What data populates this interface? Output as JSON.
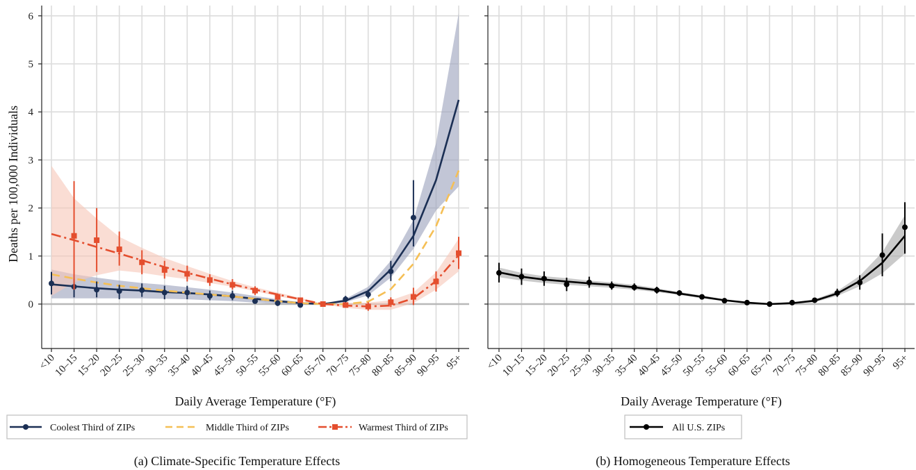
{
  "chart_data": [
    {
      "type": "line",
      "caption": "(a) Climate-Specific Temperature Effects",
      "ylabel": "Deaths per 100,000 Individuals",
      "xlabel": "Daily Average Temperature (°F)",
      "categories": [
        "<10",
        "10–15",
        "15–20",
        "20–25",
        "25–30",
        "30–35",
        "35–40",
        "40–45",
        "45–50",
        "50–55",
        "55–60",
        "60–65",
        "65–70",
        "70–75",
        "75–80",
        "80–85",
        "85–90",
        "90–95",
        "95+"
      ],
      "y_ticks": [
        "0",
        "1",
        "2",
        "3",
        "4",
        "5",
        "6"
      ],
      "ylim": [
        -0.95,
        6.2
      ],
      "grid": true,
      "legend_position": "bottom",
      "series": [
        {
          "name": "Coolest Third of ZIPs",
          "color": "#1b2f54",
          "line_style": "solid",
          "marker": "circle",
          "band_color": "#9aa0ba",
          "fit": [
            0.41,
            0.37,
            0.33,
            0.3,
            0.28,
            0.25,
            0.23,
            0.2,
            0.16,
            0.11,
            0.06,
            0.02,
            0.0,
            0.07,
            0.27,
            0.72,
            1.42,
            2.58,
            4.25
          ],
          "band_lower": [
            0.12,
            0.12,
            0.12,
            0.12,
            0.12,
            0.11,
            0.1,
            0.08,
            0.06,
            0.03,
            0.01,
            0.0,
            0.0,
            0.04,
            0.18,
            0.55,
            1.15,
            1.95,
            2.45
          ],
          "band_upper": [
            0.72,
            0.62,
            0.55,
            0.49,
            0.44,
            0.4,
            0.35,
            0.3,
            0.24,
            0.17,
            0.1,
            0.04,
            0.0,
            0.11,
            0.36,
            0.9,
            1.75,
            3.35,
            6.05
          ],
          "points": [
            0.43,
            0.36,
            0.3,
            0.27,
            0.29,
            0.24,
            0.24,
            0.17,
            0.17,
            0.06,
            0.02,
            -0.02,
            0.0,
            0.1,
            0.2,
            0.68,
            1.8,
            null,
            null
          ],
          "err_lower": [
            0.2,
            0.14,
            0.14,
            0.1,
            0.15,
            0.1,
            0.1,
            0.08,
            0.08,
            0.02,
            -0.04,
            -0.06,
            0.0,
            0.03,
            0.12,
            0.48,
            1.2,
            null,
            null
          ],
          "err_upper": [
            0.67,
            0.53,
            0.47,
            0.4,
            0.43,
            0.38,
            0.38,
            0.28,
            0.28,
            0.12,
            0.08,
            0.02,
            0.0,
            0.17,
            0.3,
            0.9,
            2.58,
            null,
            null
          ]
        },
        {
          "name": "Middle Third of ZIPs",
          "color": "#f5bf55",
          "line_style": "dashed",
          "marker": "none",
          "fit": [
            0.62,
            0.53,
            0.45,
            0.38,
            0.33,
            0.28,
            0.24,
            0.2,
            0.16,
            0.11,
            0.06,
            0.02,
            0.0,
            0.0,
            0.05,
            0.31,
            0.84,
            1.62,
            2.78
          ]
        },
        {
          "name": "Warmest Third of ZIPs",
          "color": "#e44e2e",
          "line_style": "dashdot",
          "marker": "square",
          "band_color": "#f7c6b8",
          "fit": [
            1.46,
            1.33,
            1.19,
            1.05,
            0.91,
            0.77,
            0.65,
            0.53,
            0.41,
            0.3,
            0.2,
            0.1,
            0.0,
            -0.03,
            -0.05,
            -0.03,
            0.12,
            0.48,
            1.02
          ],
          "band_lower": [
            0.17,
            0.45,
            0.6,
            0.7,
            0.65,
            0.58,
            0.52,
            0.44,
            0.36,
            0.27,
            0.16,
            0.08,
            0.0,
            -0.08,
            -0.12,
            -0.12,
            0.02,
            0.3,
            0.68
          ],
          "band_upper": [
            2.88,
            2.2,
            1.78,
            1.4,
            1.17,
            0.96,
            0.79,
            0.63,
            0.48,
            0.35,
            0.24,
            0.13,
            0.0,
            0.02,
            0.03,
            0.08,
            0.24,
            0.66,
            1.36
          ],
          "points": [
            null,
            1.42,
            1.33,
            1.14,
            0.87,
            0.71,
            0.63,
            0.5,
            0.4,
            0.28,
            0.15,
            0.08,
            0.0,
            -0.02,
            -0.05,
            0.04,
            0.15,
            0.47,
            1.06
          ],
          "err_lower": [
            null,
            0.3,
            0.67,
            0.8,
            0.62,
            0.53,
            0.47,
            0.38,
            0.3,
            0.19,
            0.08,
            0.03,
            0.0,
            -0.07,
            -0.14,
            -0.06,
            -0.02,
            0.26,
            0.73
          ],
          "err_upper": [
            null,
            2.56,
            2.0,
            1.51,
            1.12,
            0.9,
            0.8,
            0.62,
            0.52,
            0.37,
            0.22,
            0.13,
            0.0,
            0.03,
            0.04,
            0.14,
            0.34,
            0.68,
            1.4
          ]
        }
      ]
    },
    {
      "type": "line",
      "caption": "(b) Homogeneous Temperature Effects",
      "xlabel": "Daily Average Temperature (°F)",
      "categories": [
        "<10",
        "10–15",
        "15–20",
        "20–25",
        "25–30",
        "30–35",
        "35–40",
        "40–45",
        "45–50",
        "50–55",
        "55–60",
        "60–65",
        "65–70",
        "70–75",
        "75–80",
        "80–85",
        "85–90",
        "90–95",
        "95+"
      ],
      "ylim": [
        -0.95,
        6.2
      ],
      "grid": true,
      "legend_position": "bottom",
      "series": [
        {
          "name": "All U.S. ZIPs",
          "color": "#000000",
          "line_style": "solid",
          "marker": "circle",
          "band_color": "#a6a6a6",
          "fit": [
            0.66,
            0.57,
            0.51,
            0.47,
            0.43,
            0.4,
            0.35,
            0.29,
            0.22,
            0.15,
            0.08,
            0.03,
            0.0,
            0.02,
            0.07,
            0.22,
            0.48,
            0.86,
            1.42
          ],
          "band_lower": [
            0.56,
            0.49,
            0.44,
            0.4,
            0.37,
            0.34,
            0.3,
            0.25,
            0.19,
            0.12,
            0.06,
            0.02,
            0.0,
            0.01,
            0.04,
            0.17,
            0.37,
            0.64,
            1.05
          ],
          "band_upper": [
            0.76,
            0.65,
            0.58,
            0.54,
            0.49,
            0.45,
            0.4,
            0.33,
            0.25,
            0.18,
            0.1,
            0.04,
            0.0,
            0.03,
            0.1,
            0.27,
            0.59,
            1.08,
            1.85
          ],
          "points": [
            0.65,
            0.57,
            0.53,
            0.41,
            0.45,
            0.38,
            0.35,
            0.29,
            0.23,
            0.15,
            0.07,
            0.03,
            0.0,
            0.03,
            0.08,
            0.23,
            0.45,
            1.02,
            1.6
          ],
          "err_lower": [
            0.45,
            0.4,
            0.38,
            0.27,
            0.34,
            0.3,
            0.28,
            0.22,
            0.17,
            0.1,
            0.04,
            0.01,
            0.0,
            0.0,
            0.04,
            0.15,
            0.3,
            0.58,
            1.05
          ],
          "err_upper": [
            0.86,
            0.74,
            0.68,
            0.55,
            0.57,
            0.47,
            0.43,
            0.36,
            0.29,
            0.2,
            0.1,
            0.05,
            0.0,
            0.06,
            0.12,
            0.32,
            0.6,
            1.47,
            2.12
          ]
        }
      ]
    }
  ]
}
